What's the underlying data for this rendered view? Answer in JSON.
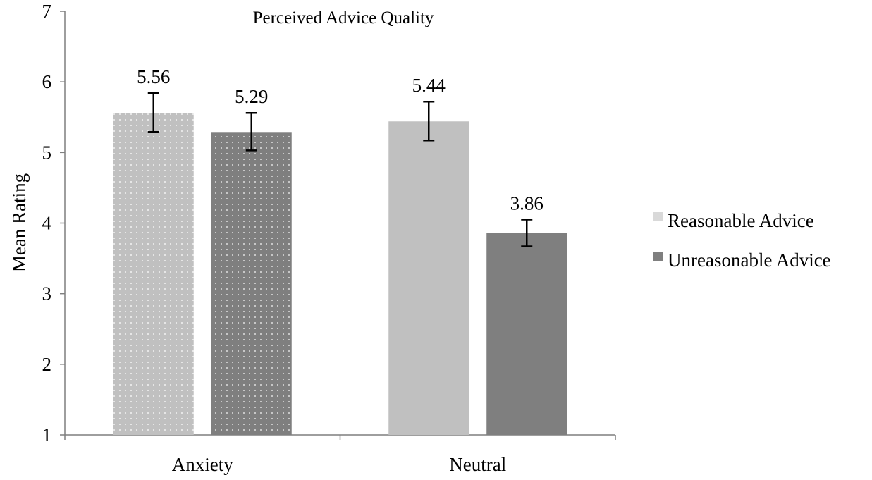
{
  "chart_data": {
    "type": "bar",
    "title": "Perceived Advice Quality",
    "xlabel": "",
    "ylabel": "Mean Rating",
    "ylim": [
      1,
      7
    ],
    "yticks": [
      1,
      2,
      3,
      4,
      5,
      6,
      7
    ],
    "categories": [
      "Anxiety",
      "Neutral"
    ],
    "series": [
      {
        "name": "Reasonable Advice",
        "values": [
          5.56,
          5.44
        ],
        "value_labels": [
          "5.56",
          "5.44"
        ],
        "error_low": [
          5.29,
          5.17
        ],
        "error_high": [
          5.84,
          5.72
        ],
        "color": "#c0c0c0",
        "dotted": [
          true,
          false
        ]
      },
      {
        "name": "Unreasonable Advice",
        "values": [
          5.29,
          3.86
        ],
        "value_labels": [
          "5.29",
          "3.86"
        ],
        "error_low": [
          5.03,
          3.67
        ],
        "error_high": [
          5.56,
          4.05
        ],
        "color": "#7f7f7f",
        "dotted": [
          true,
          false
        ]
      }
    ],
    "grid": false,
    "legend_position": "right"
  }
}
